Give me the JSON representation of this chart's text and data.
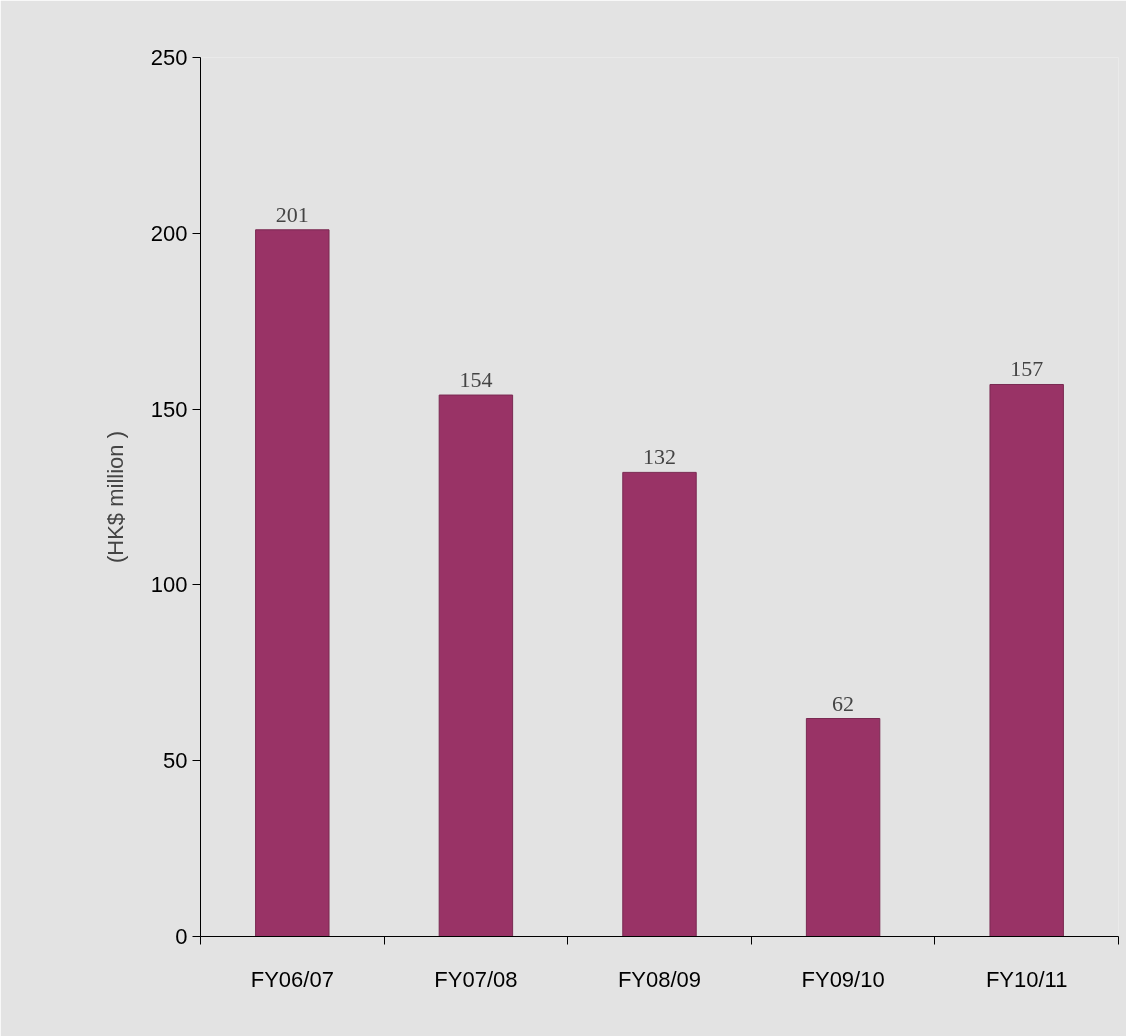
{
  "chart_data": {
    "type": "bar",
    "ylabel": "(HK$ million )",
    "categories": [
      "FY06/07",
      "FY07/08",
      "FY08/09",
      "FY09/10",
      "FY10/11"
    ],
    "values": [
      201,
      154,
      132,
      62,
      157
    ],
    "color": "#993366",
    "ylim": [
      0,
      250
    ],
    "yticks": [
      0,
      50,
      100,
      150,
      200,
      250
    ],
    "data_labels": true
  }
}
